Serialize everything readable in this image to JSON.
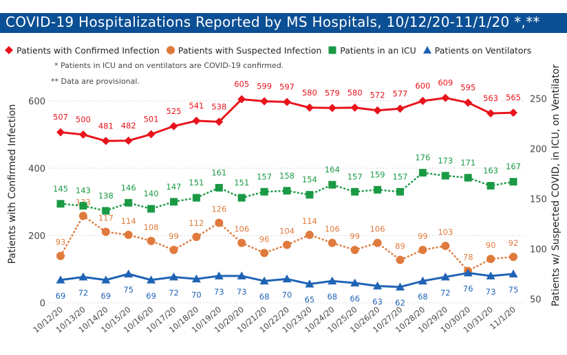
{
  "title": "COVID-19 Hospitalizations Reported by MS Hospitals, 10/12/20-11/1/20 *,**",
  "notes": [
    "* Patients in ICU and on ventilators are COVID-19 confirmed.",
    "** Data are provisional."
  ],
  "chart_data": {
    "type": "line",
    "categories": [
      "10/12/20",
      "10/13/20",
      "10/14/20",
      "10/15/20",
      "10/16/20",
      "10/17/20",
      "10/18/20",
      "10/19/20",
      "10/20/20",
      "10/21/20",
      "10/22/20",
      "10/23/20",
      "10/24/20",
      "10/25/20",
      "10/26/20",
      "10/27/20",
      "10/28/20",
      "10/29/20",
      "10/30/20",
      "10/31/20",
      "11/1/20"
    ],
    "ylabel_left": "Patients with Confirmed Infection",
    "ylabel_right": "Patients w/ Suspected COVID, in ICU, on Ventilator",
    "ylim_left": [
      0,
      650
    ],
    "ylim_right": [
      50,
      265
    ],
    "yticks_left": [
      0,
      200,
      400,
      600
    ],
    "yticks_right": [
      50,
      100,
      150,
      200,
      250
    ],
    "legend_position": "top",
    "grid": "horizontal dotted",
    "series": [
      {
        "name": "Patients with Confirmed Infection",
        "axis": "left",
        "color": "#e8131b",
        "marker": "diamond",
        "line": "solid",
        "values": [
          507,
          500,
          481,
          482,
          501,
          525,
          541,
          538,
          605,
          599,
          597,
          580,
          579,
          580,
          572,
          577,
          600,
          609,
          595,
          563,
          565
        ]
      },
      {
        "name": "Patients with Suspected Infection",
        "axis": "right",
        "color": "#e07a3c",
        "marker": "circle",
        "line": "dashed",
        "values": [
          93,
          133,
          117,
          114,
          108,
          99,
          112,
          126,
          106,
          96,
          104,
          114,
          106,
          99,
          106,
          89,
          99,
          103,
          78,
          90,
          92
        ]
      },
      {
        "name": "Patients in an ICU",
        "axis": "right",
        "color": "#1a9a45",
        "marker": "square",
        "line": "dashed",
        "values": [
          145,
          143,
          138,
          146,
          140,
          147,
          151,
          161,
          151,
          157,
          158,
          154,
          164,
          157,
          159,
          157,
          176,
          173,
          171,
          163,
          167
        ]
      },
      {
        "name": "Patients on Ventilators",
        "axis": "right",
        "color": "#1f63b5",
        "marker": "triangle",
        "line": "solid",
        "values": [
          69,
          72,
          69,
          75,
          69,
          72,
          70,
          73,
          73,
          68,
          70,
          65,
          68,
          66,
          63,
          62,
          68,
          72,
          76,
          73,
          75
        ]
      }
    ]
  }
}
